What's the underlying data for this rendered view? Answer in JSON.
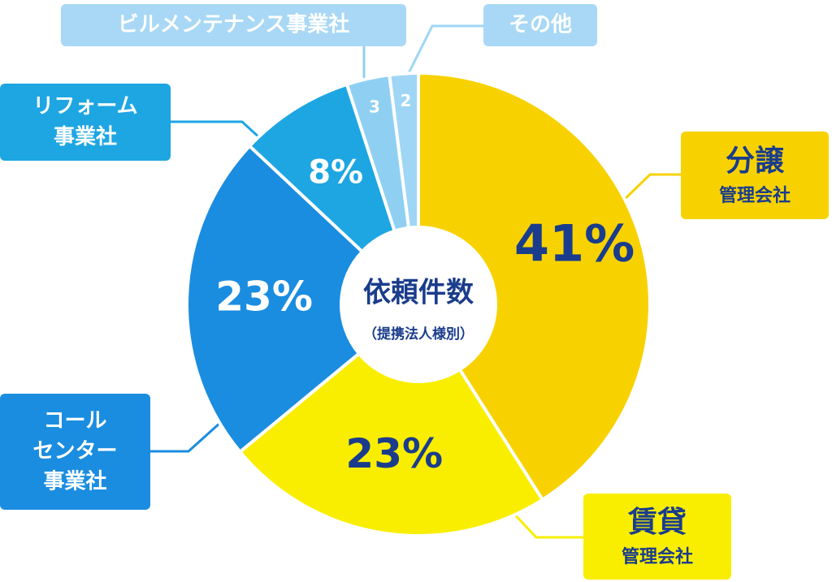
{
  "chart_data": {
    "type": "donut",
    "center_title": "依頼件数",
    "center_subtitle": "（提携法人様別）",
    "categories": [
      [
        "分譲",
        "管理会社"
      ],
      [
        "賃貸",
        "管理会社"
      ],
      [
        "コール",
        "センター",
        "事業社"
      ],
      [
        "リフォーム",
        "事業社"
      ],
      [
        "ビルメンテナンス事業社"
      ],
      [
        "その他"
      ]
    ],
    "values": [
      41,
      23,
      23,
      8,
      3,
      2
    ],
    "value_labels": [
      "41%",
      "23%",
      "23%",
      "8%",
      "3",
      "2"
    ],
    "colors": [
      "#f8d200",
      "#f9ee00",
      "#1a8de0",
      "#1ea6e2",
      "#8fd0f2",
      "#9fd6f5"
    ]
  }
}
